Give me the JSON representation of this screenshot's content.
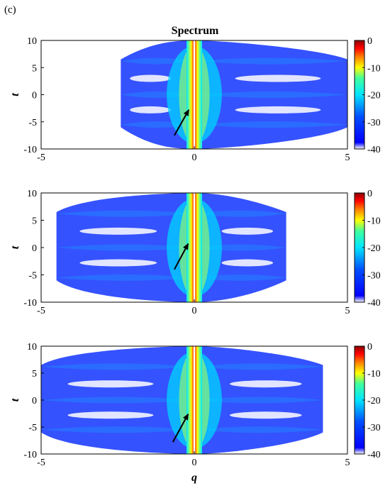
{
  "panel_label": "(c)",
  "colors": {
    "colormap": [
      "#ffffff",
      "#0000ff",
      "#00e5ff",
      "#ffff00",
      "#ff0000",
      "#8b0000"
    ],
    "arrow": "#000000"
  },
  "chart_data": [
    {
      "type": "heatmap",
      "title": "Spectrum",
      "xlabel": "",
      "ylabel": "t",
      "xlim": [
        -5,
        5
      ],
      "ylim": [
        -10,
        10
      ],
      "xticks": [
        -5,
        0,
        5
      ],
      "yticks": [
        -10,
        -5,
        0,
        5,
        10
      ],
      "colorbar": {
        "range": [
          -40,
          0
        ],
        "ticks": [
          0,
          -10,
          -20,
          -30,
          -40
        ]
      },
      "left_extent": -2.4,
      "right_extent": 5,
      "arrow": {
        "from": [
          -0.65,
          -7.5
        ],
        "to": [
          -0.18,
          -2.8
        ]
      }
    },
    {
      "type": "heatmap",
      "title": "",
      "xlabel": "",
      "ylabel": "t",
      "xlim": [
        -5,
        5
      ],
      "ylim": [
        -10,
        10
      ],
      "xticks": [
        -5,
        0,
        5
      ],
      "yticks": [
        -10,
        -5,
        0,
        5,
        10
      ],
      "colorbar": {
        "range": [
          -40,
          0
        ],
        "ticks": [
          0,
          -10,
          -20,
          -30,
          -40
        ]
      },
      "left_extent": -4.5,
      "right_extent": 3,
      "arrow": {
        "from": [
          -0.65,
          -4.0
        ],
        "to": [
          -0.2,
          0.7
        ]
      }
    },
    {
      "type": "heatmap",
      "title": "",
      "xlabel": "q",
      "ylabel": "t",
      "xlim": [
        -5,
        5
      ],
      "ylim": [
        -10,
        10
      ],
      "xticks": [
        -5,
        0,
        5
      ],
      "yticks": [
        -10,
        -5,
        0,
        5,
        10
      ],
      "colorbar": {
        "range": [
          -40,
          0
        ],
        "ticks": [
          0,
          -10,
          -20,
          -30,
          -40
        ]
      },
      "left_extent": -5,
      "right_extent": 4.2,
      "arrow": {
        "from": [
          -0.7,
          -7.8
        ],
        "to": [
          -0.2,
          -2.6
        ]
      }
    }
  ]
}
